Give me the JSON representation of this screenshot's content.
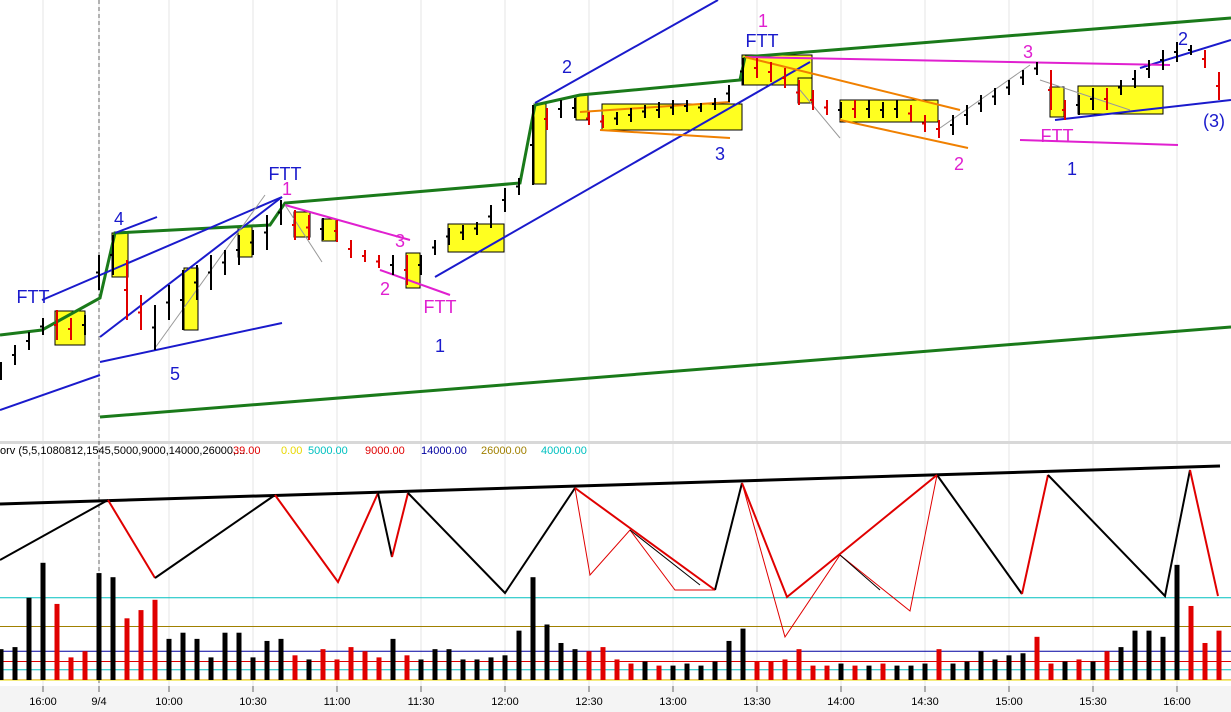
{
  "chart_data": [
    {
      "type": "ohlc",
      "annotations": [
        "FTT",
        "4",
        "FTT",
        "1",
        "5",
        "3",
        "2",
        "FTT",
        "1",
        "2",
        "3",
        "1",
        "FTT",
        "3",
        "FTT",
        "2",
        "1",
        "2",
        "(3)"
      ],
      "xlim": [
        0,
        87
      ],
      "ylim": [
        0,
        440
      ],
      "high": [
        78,
        95,
        108,
        122,
        130,
        122,
        125,
        185,
        205,
        180,
        145,
        135,
        155,
        170,
        175,
        185,
        190,
        205,
        210,
        225,
        240,
        230,
        225,
        222,
        220,
        200,
        190,
        185,
        185,
        185,
        185,
        200,
        212,
        215,
        218,
        235,
        252,
        262,
        335,
        332,
        340,
        342,
        328,
        325,
        328,
        332,
        335,
        338,
        340,
        340,
        337,
        342,
        355,
        382,
        382,
        378,
        372,
        360,
        350,
        340,
        338,
        340,
        340,
        338,
        340,
        335,
        325,
        320,
        325,
        335,
        345,
        352,
        360,
        370,
        378,
        370,
        340,
        345,
        352,
        352,
        360,
        370,
        380,
        390,
        398,
        395,
        390,
        368
      ],
      "low": [
        60,
        75,
        90,
        105,
        100,
        100,
        105,
        150,
        165,
        120,
        110,
        90,
        120,
        110,
        140,
        150,
        165,
        175,
        185,
        190,
        215,
        200,
        200,
        200,
        198,
        182,
        178,
        172,
        165,
        155,
        165,
        185,
        195,
        200,
        205,
        212,
        228,
        245,
        255,
        310,
        322,
        322,
        315,
        312,
        315,
        318,
        322,
        322,
        325,
        328,
        328,
        330,
        338,
        355,
        362,
        358,
        352,
        335,
        330,
        325,
        322,
        322,
        322,
        322,
        322,
        318,
        308,
        302,
        305,
        315,
        328,
        335,
        345,
        355,
        365,
        330,
        320,
        325,
        330,
        330,
        345,
        352,
        362,
        370,
        378,
        385,
        372,
        340
      ],
      "colors": [
        "#000",
        "#000",
        "#000",
        "#000",
        "#e00000",
        "#e00000",
        "#000",
        "#000",
        "#000",
        "#e00000",
        "#e00000",
        "#000",
        "#000",
        "#000",
        "#000",
        "#000",
        "#000",
        "#000",
        "#000",
        "#000",
        "#000",
        "#e00000",
        "#e00000",
        "#000",
        "#e00000",
        "#e00000",
        "#e00000",
        "#e00000",
        "#000",
        "#e00000",
        "#000",
        "#000",
        "#000",
        "#000",
        "#000",
        "#000",
        "#000",
        "#000",
        "#000",
        "#e00000",
        "#000",
        "#000",
        "#e00000",
        "#e00000",
        "#000",
        "#000",
        "#000",
        "#000",
        "#000",
        "#000",
        "#000",
        "#000",
        "#000",
        "#000",
        "#e00000",
        "#e00000",
        "#e00000",
        "#e00000",
        "#e00000",
        "#e00000",
        "#000",
        "#e00000",
        "#000",
        "#000",
        "#000",
        "#e00000",
        "#e00000",
        "#e00000",
        "#000",
        "#000",
        "#000",
        "#000",
        "#000",
        "#000",
        "#000",
        "#e00000",
        "#e00000",
        "#000",
        "#000",
        "#e00000",
        "#000",
        "#000",
        "#000",
        "#000",
        "#000",
        "#000",
        "#e00000",
        "#e00000"
      ]
    },
    {
      "type": "bar",
      "title": "orv (5,5,1080812,1545,5000,9000,14000,26000,...",
      "xlim": [
        0,
        87
      ],
      "ylim": [
        0,
        107000
      ],
      "values": [
        15000,
        16000,
        40000,
        57000,
        37000,
        11000,
        14000,
        52000,
        50000,
        30000,
        34000,
        39000,
        20000,
        23000,
        20000,
        11000,
        23000,
        23000,
        11000,
        19000,
        20000,
        12000,
        10000,
        15000,
        10000,
        16000,
        14000,
        11000,
        20000,
        12000,
        10000,
        15000,
        15000,
        10000,
        10000,
        11000,
        12000,
        24000,
        50000,
        27000,
        18000,
        15000,
        14000,
        16000,
        10000,
        8000,
        9000,
        7000,
        7000,
        8000,
        7000,
        9000,
        19000,
        25000,
        9000,
        9000,
        10000,
        15000,
        7000,
        7000,
        8000,
        7000,
        7000,
        8000,
        7000,
        7000,
        8000,
        15000,
        8000,
        9000,
        14000,
        10000,
        12000,
        13000,
        21000,
        8000,
        9000,
        10000,
        9000,
        14000,
        16000,
        24000,
        24000,
        21000,
        56000,
        36000,
        18000,
        24000
      ],
      "colors": [
        "#000",
        "#000",
        "#000",
        "#000",
        "#e00000",
        "#e00000",
        "#e00000",
        "#000",
        "#000",
        "#e00000",
        "#e00000",
        "#e00000",
        "#000",
        "#000",
        "#000",
        "#000",
        "#000",
        "#000",
        "#000",
        "#000",
        "#000",
        "#e00000",
        "#000",
        "#e00000",
        "#e00000",
        "#e00000",
        "#e00000",
        "#e00000",
        "#000",
        "#e00000",
        "#000",
        "#000",
        "#000",
        "#000",
        "#000",
        "#000",
        "#000",
        "#000",
        "#000",
        "#000",
        "#000",
        "#000",
        "#e00000",
        "#e00000",
        "#e00000",
        "#e00000",
        "#000",
        "#e00000",
        "#000",
        "#000",
        "#000",
        "#000",
        "#000",
        "#000",
        "#e00000",
        "#e00000",
        "#e00000",
        "#e00000",
        "#e00000",
        "#e00000",
        "#000",
        "#e00000",
        "#000",
        "#e00000",
        "#000",
        "#000",
        "#000",
        "#e00000",
        "#000",
        "#000",
        "#000",
        "#000",
        "#000",
        "#000",
        "#e00000",
        "#e00000",
        "#000",
        "#e00000",
        "#000",
        "#e00000",
        "#000",
        "#000",
        "#000",
        "#000",
        "#000",
        "#e00000",
        "#e00000",
        "#e00000"
      ],
      "levels": [
        {
          "value": 39,
          "label": "39.00",
          "color": "#e00000"
        },
        {
          "value": 0,
          "label": "0.00",
          "color": "#e8d800"
        },
        {
          "value": 5000,
          "label": "5000.00",
          "color": "#00c0c0"
        },
        {
          "value": 9000,
          "label": "9000.00",
          "color": "#e00000"
        },
        {
          "value": 14000,
          "label": "14000.00",
          "color": "#0000a0"
        },
        {
          "value": 26000,
          "label": "26000.00",
          "color": "#a08000"
        },
        {
          "value": 40000,
          "label": "40000.00",
          "color": "#00c0c0"
        }
      ],
      "xticks": [
        {
          "value": 3,
          "label": "16:00"
        },
        {
          "value": 7,
          "label": "9/4"
        },
        {
          "value": 12,
          "label": "10:00"
        },
        {
          "value": 18,
          "label": "10:30"
        },
        {
          "value": 24,
          "label": "11:00"
        },
        {
          "value": 30,
          "label": "11:30"
        },
        {
          "value": 36,
          "label": "12:00"
        },
        {
          "value": 42,
          "label": "12:30"
        },
        {
          "value": 48,
          "label": "13:00"
        },
        {
          "value": 54,
          "label": "13:30"
        },
        {
          "value": 60,
          "label": "14:00"
        },
        {
          "value": 66,
          "label": "14:30"
        },
        {
          "value": 72,
          "label": "15:00"
        },
        {
          "value": 78,
          "label": "15:30"
        },
        {
          "value": 84,
          "label": "16:00"
        }
      ]
    }
  ]
}
